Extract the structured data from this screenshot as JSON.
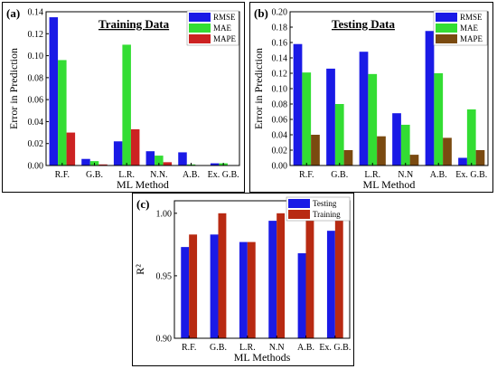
{
  "panels": {
    "a": {
      "letter": "(a)"
    },
    "b": {
      "letter": "(b)"
    },
    "c": {
      "letter": "(c)"
    }
  },
  "chart_data": [
    {
      "type": "bar",
      "title": "Training Data",
      "xlabel": "ML Method",
      "ylabel": "Error in Prediction",
      "categories": [
        "R.F.",
        "G.B.",
        "L.R.",
        "N.N.",
        "A.B.",
        "Ex. G.B."
      ],
      "ylim": [
        0,
        0.14
      ],
      "yticks": [
        "0.00",
        "0.02",
        "0.04",
        "0.06",
        "0.08",
        "0.10",
        "0.12",
        "0.14"
      ],
      "legend_position": "top-right",
      "series": [
        {
          "name": "RMSE",
          "color": "#1a1ae6",
          "values": [
            0.135,
            0.006,
            0.022,
            0.013,
            0.012,
            0.002
          ]
        },
        {
          "name": "MAE",
          "color": "#33dd33",
          "values": [
            0.096,
            0.004,
            0.11,
            0.009,
            0.001,
            0.002
          ]
        },
        {
          "name": "MAPE",
          "color": "#cc2222",
          "values": [
            0.03,
            0.001,
            0.033,
            0.003,
            0.0,
            0.0
          ]
        }
      ]
    },
    {
      "type": "bar",
      "title": "Testing Data",
      "xlabel": "ML Method",
      "ylabel": "Error in Prediction",
      "categories": [
        "R.F.",
        "G.B.",
        "L.R.",
        "N.N",
        "A.B.",
        "Ex. G.B."
      ],
      "ylim": [
        0,
        0.2
      ],
      "yticks": [
        "0.00",
        "0.02",
        "0.04",
        "0.06",
        "0.08",
        "0.10",
        "0.12",
        "0.14",
        "0.16",
        "0.18",
        "0.20"
      ],
      "legend_position": "top-right",
      "series": [
        {
          "name": "RMSE",
          "color": "#1a1ae6",
          "values": [
            0.158,
            0.126,
            0.148,
            0.068,
            0.175,
            0.01
          ]
        },
        {
          "name": "MAE",
          "color": "#33dd33",
          "values": [
            0.121,
            0.08,
            0.119,
            0.053,
            0.12,
            0.073
          ]
        },
        {
          "name": "MAPE",
          "color": "#7a4a10",
          "values": [
            0.04,
            0.02,
            0.038,
            0.014,
            0.036,
            0.02
          ]
        }
      ]
    },
    {
      "type": "bar",
      "title": "",
      "xlabel": "ML Methods",
      "ylabel": "R²",
      "categories": [
        "R.F.",
        "G.B.",
        "L.R.",
        "N.N",
        "A.B.",
        "Ex. G.B."
      ],
      "ylim": [
        0.9,
        1.01
      ],
      "yticks": [
        "0.90",
        "0.95",
        "1.00"
      ],
      "legend_position": "top-right",
      "series": [
        {
          "name": "Testing",
          "color": "#1a1ae6",
          "values": [
            0.973,
            0.983,
            0.977,
            0.994,
            0.968,
            0.986
          ]
        },
        {
          "name": "Training",
          "color": "#b82a12",
          "values": [
            0.983,
            1.0,
            0.977,
            1.0,
            1.0,
            1.0
          ]
        }
      ]
    }
  ]
}
